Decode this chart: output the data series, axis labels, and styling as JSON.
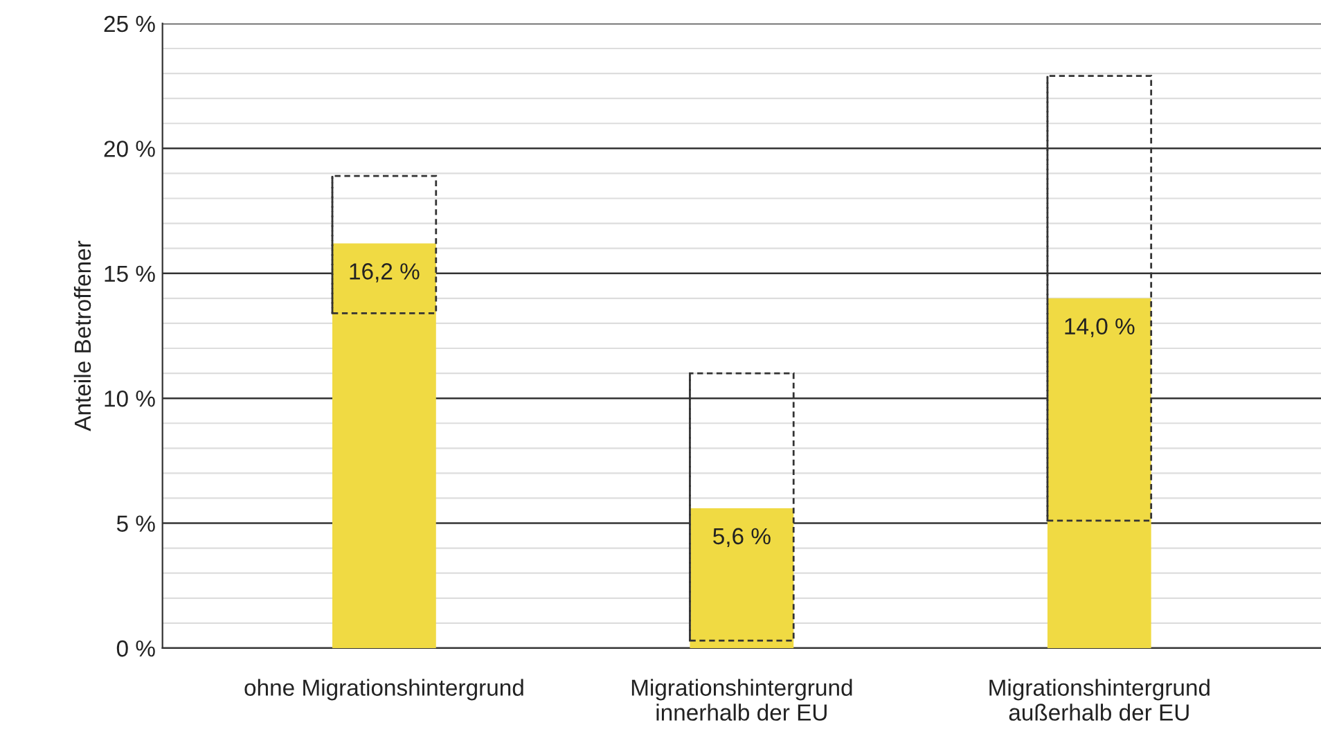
{
  "chart_data": {
    "type": "bar",
    "ylabel": "Anteile Betroffener",
    "categories": [
      "ohne Migrationshintergrund",
      "Migrationshintergrund\ninnerhalb der EU",
      "Migrationshintergrund\naußerhalb der EU"
    ],
    "values": [
      16.2,
      5.6,
      14.0
    ],
    "value_labels": [
      "16,2 %",
      "5,6 %",
      "14,0 %"
    ],
    "errors": [
      [
        13.4,
        18.9
      ],
      [
        0.3,
        11.0
      ],
      [
        5.1,
        22.9
      ]
    ],
    "color": "#f0da43",
    "ylim": [
      0,
      25
    ],
    "yticks": [
      {
        "value": 0,
        "label": "0 %"
      },
      {
        "value": 5,
        "label": "5 %"
      },
      {
        "value": 10,
        "label": "10 %"
      },
      {
        "value": 15,
        "label": "15 %"
      },
      {
        "value": 20,
        "label": "20 %"
      },
      {
        "value": 25,
        "label": "25 %"
      }
    ],
    "grid": "y",
    "legend": false
  }
}
